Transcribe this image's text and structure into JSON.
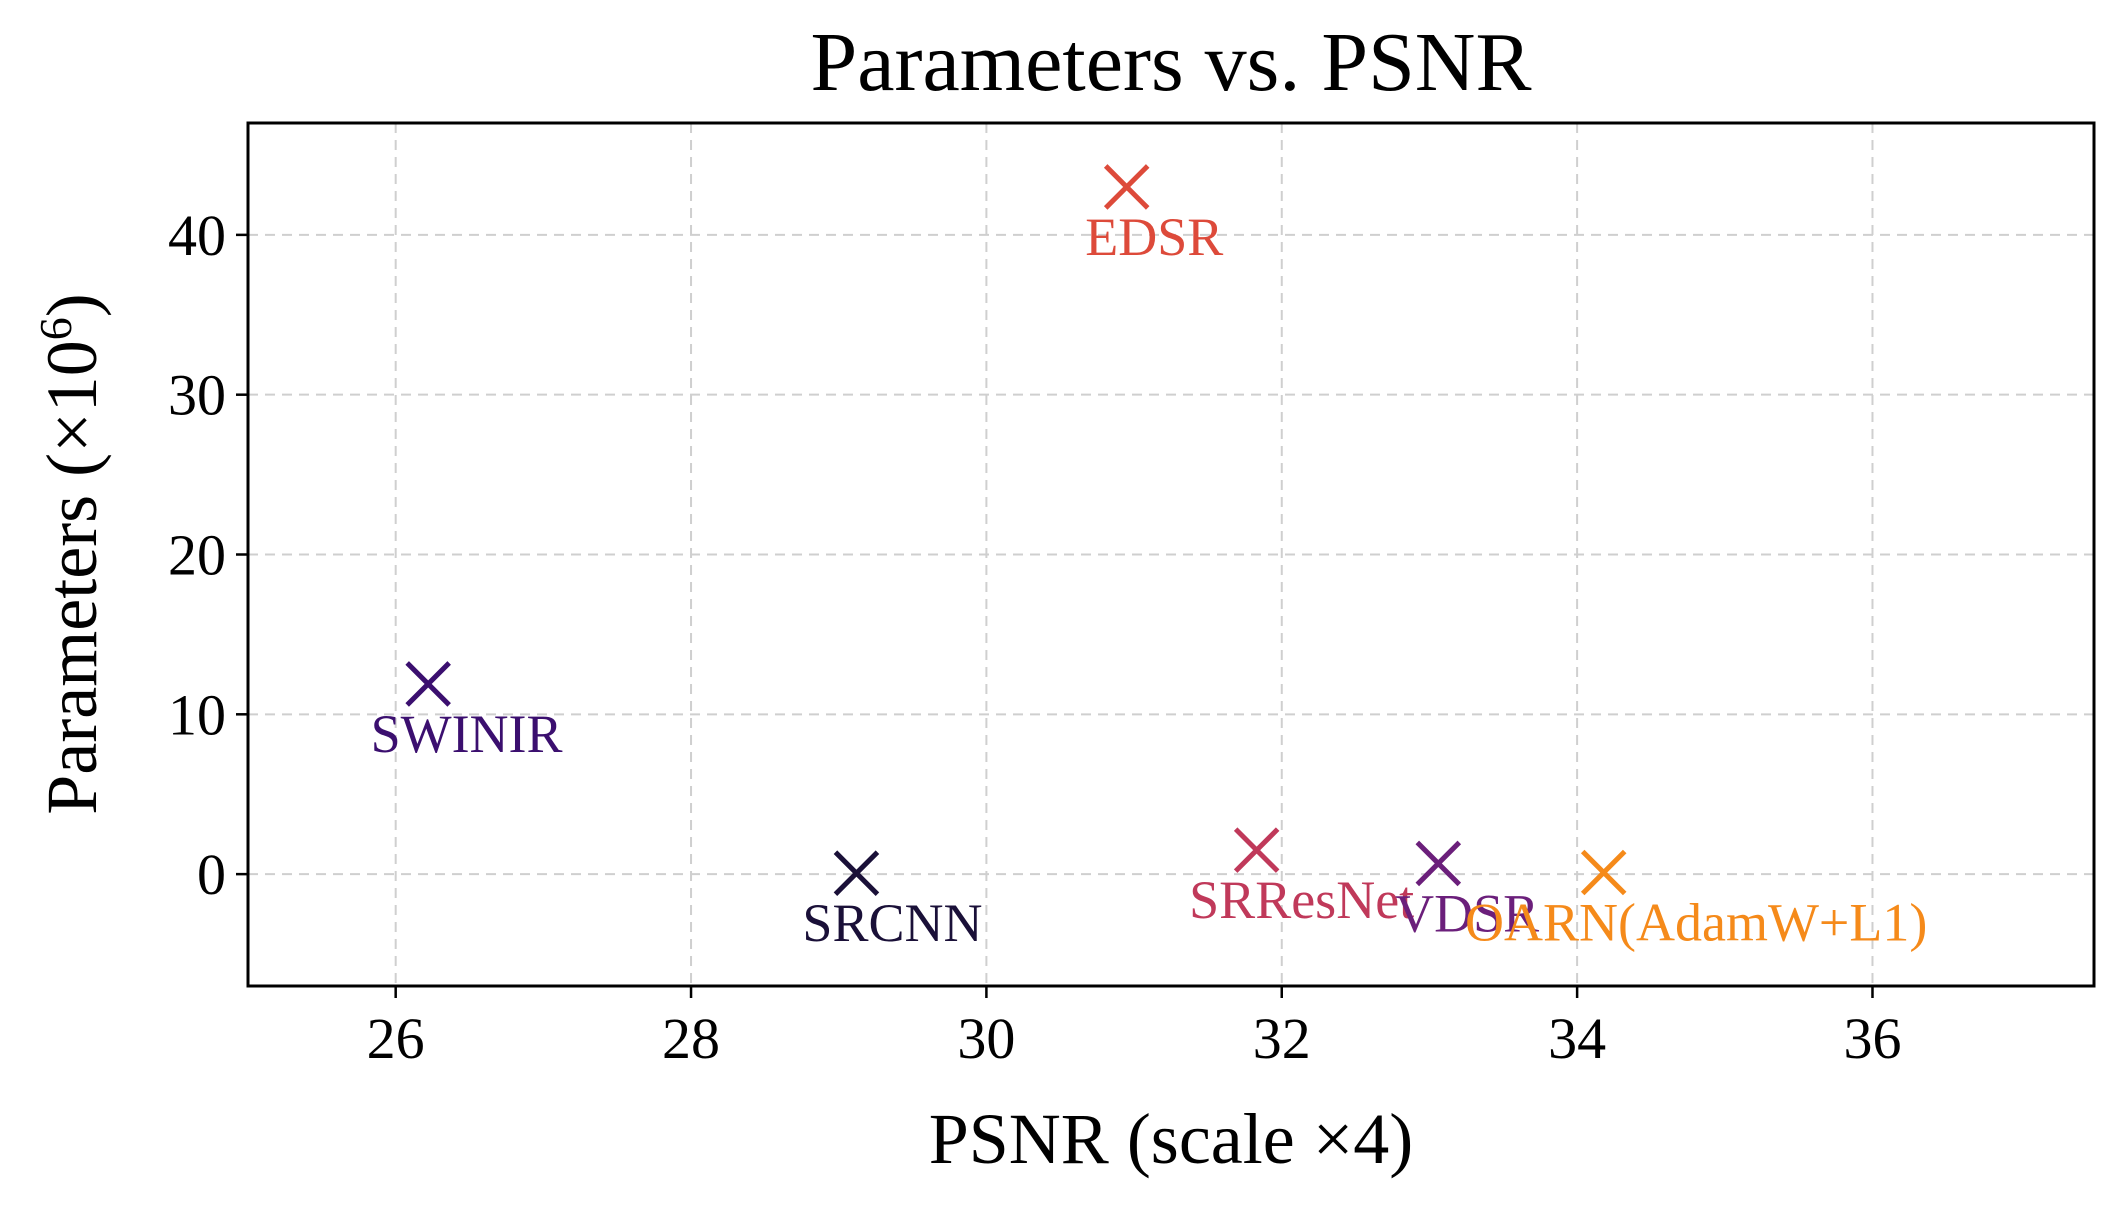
{
  "chart_data": {
    "type": "scatter",
    "title": "Parameters vs. PSNR",
    "xlabel": "PSNR (scale ×4)",
    "ylabel_main": "Parameters (×10",
    "ylabel_sup": "6",
    "ylabel_close": ")",
    "xlim": [
      25.0,
      37.5
    ],
    "ylim": [
      -7.0,
      47.0
    ],
    "xticks": [
      26,
      28,
      30,
      32,
      34,
      36
    ],
    "yticks": [
      0,
      10,
      20,
      30,
      40
    ],
    "grid": true,
    "marker": "x",
    "points": [
      {
        "label": "EDSR",
        "x": 30.95,
        "y": 43.0,
        "color": "#dd4a3a"
      },
      {
        "label": "SWINIR",
        "x": 26.22,
        "y": 11.9,
        "color": "#3b0f6f"
      },
      {
        "label": "SRCNN",
        "x": 29.12,
        "y": 0.06,
        "color": "#1a1038"
      },
      {
        "label": "SRResNet",
        "x": 31.83,
        "y": 1.5,
        "color": "#c0395a"
      },
      {
        "label": "VDSR",
        "x": 33.06,
        "y": 0.67,
        "color": "#6b1f7b"
      },
      {
        "label": "OARN(AdamW+L1)",
        "x": 34.18,
        "y": 0.1,
        "color": "#f58a1a"
      }
    ]
  }
}
